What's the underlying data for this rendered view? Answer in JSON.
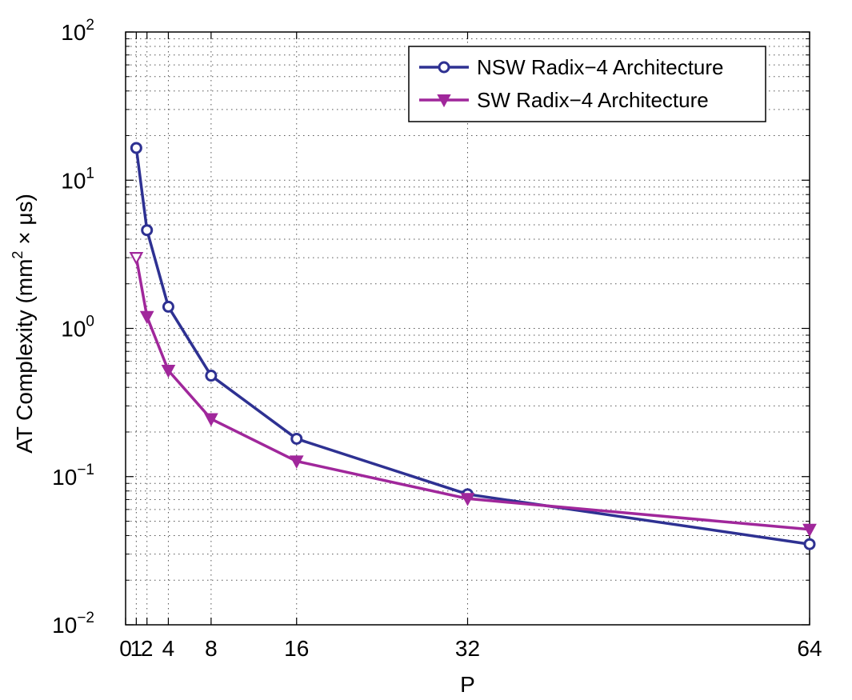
{
  "chart_data": {
    "type": "line",
    "title": "",
    "xlabel": "P",
    "ylabel": "AT Complexity (mm",
    "ylabel_sup": "2",
    "ylabel_tail": " × μs)",
    "y_scale": "log",
    "xlim": [
      0,
      64
    ],
    "ylim": [
      0.01,
      100
    ],
    "x_ticks": [
      0,
      1,
      2,
      4,
      8,
      16,
      32,
      64
    ],
    "x_tick_labels": [
      "0",
      "1",
      "2",
      "4",
      "8",
      "16",
      "32",
      "64"
    ],
    "y_ticks": [
      {
        "base": "10",
        "exp": "−2",
        "value": 0.01
      },
      {
        "base": "10",
        "exp": "−1",
        "value": 0.1
      },
      {
        "base": "10",
        "exp": "0",
        "value": 1
      },
      {
        "base": "10",
        "exp": "1",
        "value": 10
      },
      {
        "base": "10",
        "exp": "2",
        "value": 100
      }
    ],
    "grid": true,
    "legend_position": "top-right",
    "x": [
      1,
      2,
      4,
      8,
      16,
      32,
      64
    ],
    "series": [
      {
        "name": "NSW Radix−4 Architecture",
        "values": [
          16.5,
          4.6,
          1.4,
          0.48,
          0.18,
          0.076,
          0.035
        ],
        "color": "#2e3192",
        "marker": "circle"
      },
      {
        "name": "SW Radix−4 Architecture",
        "values": [
          3.0,
          1.2,
          0.52,
          0.245,
          0.127,
          0.071,
          0.044
        ],
        "color": "#a0279b",
        "marker": "triangle-down"
      }
    ]
  }
}
